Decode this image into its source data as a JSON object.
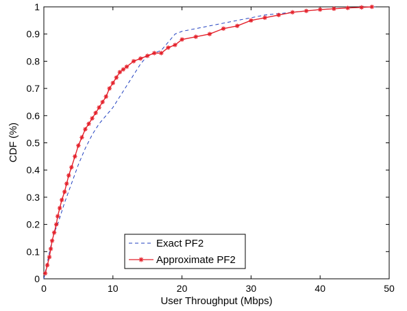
{
  "chart_data": {
    "type": "line",
    "title": "",
    "xlabel": "User Throughput (Mbps)",
    "ylabel": "CDF (%)",
    "xlim": [
      0,
      50
    ],
    "ylim": [
      0,
      1
    ],
    "xticks": [
      0,
      10,
      20,
      30,
      40,
      50
    ],
    "xtick_labels": [
      "0",
      "10",
      "20",
      "30",
      "40",
      "50"
    ],
    "yticks": [
      0,
      0.1,
      0.2,
      0.3,
      0.4,
      0.5,
      0.6,
      0.7,
      0.8,
      0.9,
      1
    ],
    "ytick_labels": [
      "0",
      "0.1",
      "0.2",
      "0.3",
      "0.4",
      "0.5",
      "0.6",
      "0.7",
      "0.8",
      "0.9",
      "1"
    ],
    "grid": false,
    "legend_position": "bottom-center",
    "series": [
      {
        "name": "Exact PF2",
        "color": "#1f3fbf",
        "style": "dashed",
        "marker": "none",
        "x": [
          0,
          0.5,
          1,
          1.5,
          2,
          2.5,
          3,
          4,
          5,
          6,
          7,
          8,
          9,
          10,
          11,
          12,
          13,
          14,
          15,
          16,
          17,
          18,
          19,
          20,
          22,
          24,
          26,
          28,
          30,
          32,
          34,
          36,
          38,
          40,
          42,
          44,
          46,
          48
        ],
        "y": [
          0,
          0.06,
          0.12,
          0.17,
          0.2,
          0.24,
          0.28,
          0.35,
          0.42,
          0.48,
          0.53,
          0.57,
          0.6,
          0.63,
          0.67,
          0.71,
          0.75,
          0.79,
          0.82,
          0.83,
          0.84,
          0.87,
          0.9,
          0.91,
          0.92,
          0.93,
          0.94,
          0.95,
          0.96,
          0.97,
          0.975,
          0.98,
          0.985,
          0.99,
          0.993,
          0.996,
          0.998,
          1
        ]
      },
      {
        "name": "Approximate PF2",
        "color": "#e4202a",
        "style": "solid",
        "marker": "asterisk",
        "x": [
          0.2,
          0.5,
          0.8,
          1,
          1.2,
          1.5,
          1.8,
          2,
          2.3,
          2.6,
          3,
          3.3,
          3.6,
          4,
          4.5,
          5,
          5.5,
          6,
          6.5,
          7,
          7.5,
          8,
          8.5,
          9,
          9.5,
          10,
          10.5,
          11,
          11.5,
          12,
          13,
          14,
          15,
          16,
          17,
          18,
          19,
          20,
          22,
          24,
          26,
          28,
          30,
          32,
          34,
          36,
          38,
          40,
          42,
          44,
          46,
          47.5
        ],
        "y": [
          0.02,
          0.05,
          0.08,
          0.11,
          0.14,
          0.17,
          0.2,
          0.23,
          0.26,
          0.29,
          0.32,
          0.35,
          0.38,
          0.41,
          0.45,
          0.49,
          0.52,
          0.55,
          0.57,
          0.59,
          0.61,
          0.63,
          0.65,
          0.67,
          0.7,
          0.72,
          0.74,
          0.76,
          0.77,
          0.78,
          0.8,
          0.81,
          0.82,
          0.83,
          0.83,
          0.85,
          0.86,
          0.88,
          0.89,
          0.9,
          0.92,
          0.93,
          0.95,
          0.96,
          0.97,
          0.98,
          0.985,
          0.99,
          0.993,
          0.996,
          0.998,
          1
        ]
      }
    ]
  }
}
